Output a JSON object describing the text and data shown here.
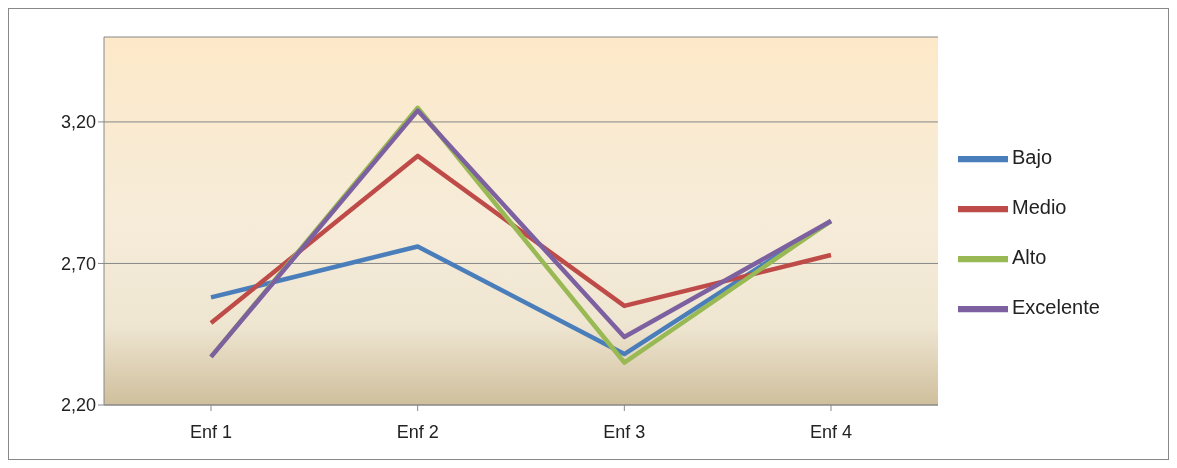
{
  "chart_data": {
    "type": "line",
    "categories": [
      "Enf 1",
      "Enf 2",
      "Enf 3",
      "Enf 4"
    ],
    "series": [
      {
        "name": "Bajo",
        "color": "#4a7ebb",
        "values": [
          2.58,
          2.76,
          2.38,
          2.85
        ]
      },
      {
        "name": "Medio",
        "color": "#be4b48",
        "values": [
          2.49,
          3.08,
          2.55,
          2.73
        ]
      },
      {
        "name": "Alto",
        "color": "#98b954",
        "values": [
          2.37,
          3.25,
          2.35,
          2.85
        ]
      },
      {
        "name": "Excelente",
        "color": "#7d60a0",
        "values": [
          2.37,
          3.24,
          2.44,
          2.85
        ]
      }
    ],
    "ylim": [
      2.2,
      3.5
    ],
    "yticks": [
      {
        "value": 2.2,
        "label": "2,20"
      },
      {
        "value": 2.7,
        "label": "2,70"
      },
      {
        "value": 3.2,
        "label": "3,20"
      }
    ],
    "grid": "y",
    "legend": "right",
    "marker": "none",
    "line_style": "solid"
  }
}
